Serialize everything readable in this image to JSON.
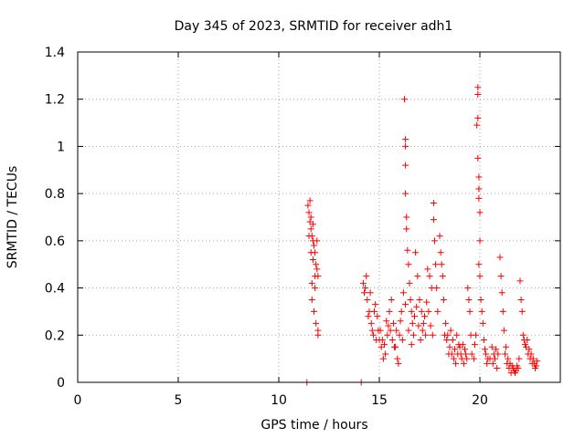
{
  "chart_data": {
    "type": "scatter",
    "title": "Day 345 of 2023, SRMTID for receiver adh1",
    "xlabel": "GPS time / hours",
    "ylabel": "SRMTID / TECUs",
    "xlim": [
      0,
      24
    ],
    "ylim": [
      0,
      1.4
    ],
    "xticks": [
      0,
      5,
      10,
      15,
      20
    ],
    "xtick_labels": [
      "0",
      "5",
      "10",
      "15",
      "20"
    ],
    "yticks": [
      0,
      0.2,
      0.4,
      0.6,
      0.8,
      1.0,
      1.2,
      1.4
    ],
    "ytick_labels": [
      "0",
      "0.2",
      "0.4",
      "0.6",
      "0.8",
      "1",
      "1.2",
      "1.4"
    ],
    "grid": true,
    "marker": "plus",
    "marker_color": "#ff0000",
    "series": [
      {
        "name": "adh1",
        "points": [
          [
            11.4,
            0.0
          ],
          [
            14.1,
            0.0
          ],
          [
            11.45,
            0.75
          ],
          [
            11.5,
            0.72
          ],
          [
            11.55,
            0.68
          ],
          [
            11.6,
            0.65
          ],
          [
            11.65,
            0.62
          ],
          [
            11.7,
            0.6
          ],
          [
            11.75,
            0.58
          ],
          [
            11.8,
            0.55
          ],
          [
            11.85,
            0.5
          ],
          [
            11.9,
            0.48
          ],
          [
            11.95,
            0.45
          ],
          [
            11.5,
            0.62
          ],
          [
            11.6,
            0.55
          ],
          [
            11.7,
            0.52
          ],
          [
            11.8,
            0.4
          ],
          [
            11.65,
            0.35
          ],
          [
            11.75,
            0.3
          ],
          [
            11.85,
            0.25
          ],
          [
            11.95,
            0.22
          ],
          [
            11.55,
            0.77
          ],
          [
            11.6,
            0.7
          ],
          [
            11.7,
            0.67
          ],
          [
            11.9,
            0.6
          ],
          [
            11.8,
            0.45
          ],
          [
            11.95,
            0.2
          ],
          [
            11.65,
            0.42
          ],
          [
            14.2,
            0.42
          ],
          [
            14.3,
            0.4
          ],
          [
            14.4,
            0.35
          ],
          [
            14.5,
            0.3
          ],
          [
            14.6,
            0.25
          ],
          [
            14.7,
            0.2
          ],
          [
            14.8,
            0.33
          ],
          [
            14.9,
            0.28
          ],
          [
            15.0,
            0.18
          ],
          [
            15.1,
            0.15
          ],
          [
            15.2,
            0.1
          ],
          [
            15.3,
            0.12
          ],
          [
            15.4,
            0.2
          ],
          [
            15.5,
            0.3
          ],
          [
            15.6,
            0.35
          ],
          [
            15.7,
            0.25
          ],
          [
            15.8,
            0.15
          ],
          [
            15.9,
            0.1
          ],
          [
            16.0,
            0.2
          ],
          [
            16.1,
            0.3
          ],
          [
            16.2,
            0.38
          ],
          [
            16.3,
            0.33
          ],
          [
            14.35,
            0.45
          ],
          [
            14.55,
            0.38
          ],
          [
            14.75,
            0.3
          ],
          [
            14.95,
            0.22
          ],
          [
            15.15,
            0.18
          ],
          [
            15.35,
            0.26
          ],
          [
            15.55,
            0.22
          ],
          [
            15.75,
            0.15
          ],
          [
            15.95,
            0.08
          ],
          [
            16.25,
            1.2
          ],
          [
            16.3,
            1.03
          ],
          [
            16.3,
            1.0
          ],
          [
            16.3,
            0.92
          ],
          [
            16.3,
            0.8
          ],
          [
            16.35,
            0.7
          ],
          [
            16.35,
            0.65
          ],
          [
            16.4,
            0.56
          ],
          [
            16.45,
            0.5
          ],
          [
            16.5,
            0.42
          ],
          [
            16.55,
            0.35
          ],
          [
            16.6,
            0.3
          ],
          [
            16.65,
            0.25
          ],
          [
            16.7,
            0.2
          ],
          [
            16.8,
            0.55
          ],
          [
            16.9,
            0.45
          ],
          [
            17.0,
            0.35
          ],
          [
            17.1,
            0.3
          ],
          [
            17.2,
            0.25
          ],
          [
            17.3,
            0.2
          ],
          [
            17.4,
            0.48
          ],
          [
            17.5,
            0.45
          ],
          [
            17.6,
            0.4
          ],
          [
            17.7,
            0.76
          ],
          [
            17.7,
            0.69
          ],
          [
            17.75,
            0.6
          ],
          [
            17.8,
            0.5
          ],
          [
            17.85,
            0.4
          ],
          [
            17.9,
            0.3
          ],
          [
            18.0,
            0.62
          ],
          [
            18.05,
            0.55
          ],
          [
            18.1,
            0.5
          ],
          [
            18.15,
            0.45
          ],
          [
            18.2,
            0.35
          ],
          [
            18.3,
            0.25
          ],
          [
            18.4,
            0.2
          ],
          [
            18.5,
            0.15
          ],
          [
            18.6,
            0.12
          ],
          [
            18.7,
            0.1
          ],
          [
            18.8,
            0.08
          ],
          [
            18.9,
            0.12
          ],
          [
            19.0,
            0.15
          ],
          [
            19.1,
            0.1
          ],
          [
            19.2,
            0.08
          ],
          [
            19.3,
            0.12
          ],
          [
            19.4,
            0.4
          ],
          [
            19.45,
            0.35
          ],
          [
            19.5,
            0.3
          ],
          [
            19.55,
            0.2
          ],
          [
            19.6,
            0.12
          ],
          [
            19.9,
            1.25
          ],
          [
            19.9,
            1.22
          ],
          [
            19.9,
            1.12
          ],
          [
            19.85,
            1.09
          ],
          [
            19.9,
            0.95
          ],
          [
            19.95,
            0.87
          ],
          [
            19.95,
            0.82
          ],
          [
            19.95,
            0.78
          ],
          [
            20.0,
            0.72
          ],
          [
            20.0,
            0.6
          ],
          [
            19.95,
            0.5
          ],
          [
            20.0,
            0.45
          ],
          [
            20.05,
            0.35
          ],
          [
            20.1,
            0.3
          ],
          [
            20.15,
            0.25
          ],
          [
            20.2,
            0.18
          ],
          [
            20.3,
            0.12
          ],
          [
            20.4,
            0.1
          ],
          [
            20.6,
            0.15
          ],
          [
            20.7,
            0.12
          ],
          [
            20.8,
            0.14
          ],
          [
            20.9,
            0.12
          ],
          [
            21.0,
            0.53
          ],
          [
            21.05,
            0.45
          ],
          [
            21.1,
            0.38
          ],
          [
            21.15,
            0.3
          ],
          [
            21.2,
            0.22
          ],
          [
            21.3,
            0.15
          ],
          [
            21.4,
            0.1
          ],
          [
            21.5,
            0.08
          ],
          [
            21.6,
            0.07
          ],
          [
            21.7,
            0.05
          ],
          [
            21.8,
            0.05
          ],
          [
            21.9,
            0.06
          ],
          [
            22.0,
            0.43
          ],
          [
            22.05,
            0.35
          ],
          [
            22.1,
            0.3
          ],
          [
            22.15,
            0.2
          ],
          [
            22.2,
            0.18
          ],
          [
            22.3,
            0.15
          ],
          [
            22.4,
            0.12
          ],
          [
            22.5,
            0.1
          ],
          [
            22.6,
            0.08
          ],
          [
            22.7,
            0.08
          ],
          [
            22.8,
            0.07
          ],
          [
            14.25,
            0.38
          ],
          [
            14.45,
            0.28
          ],
          [
            14.65,
            0.22
          ],
          [
            14.85,
            0.18
          ],
          [
            15.05,
            0.22
          ],
          [
            15.25,
            0.16
          ],
          [
            15.45,
            0.24
          ],
          [
            15.65,
            0.18
          ],
          [
            15.85,
            0.22
          ],
          [
            16.05,
            0.26
          ],
          [
            16.15,
            0.18
          ],
          [
            16.45,
            0.22
          ],
          [
            16.6,
            0.16
          ],
          [
            16.75,
            0.28
          ],
          [
            16.85,
            0.32
          ],
          [
            16.95,
            0.24
          ],
          [
            17.05,
            0.18
          ],
          [
            17.15,
            0.22
          ],
          [
            17.25,
            0.28
          ],
          [
            17.35,
            0.34
          ],
          [
            17.45,
            0.3
          ],
          [
            17.55,
            0.24
          ],
          [
            17.65,
            0.2
          ],
          [
            18.25,
            0.2
          ],
          [
            18.35,
            0.18
          ],
          [
            18.45,
            0.12
          ],
          [
            18.55,
            0.22
          ],
          [
            18.65,
            0.18
          ],
          [
            18.75,
            0.14
          ],
          [
            18.85,
            0.2
          ],
          [
            18.95,
            0.16
          ],
          [
            19.05,
            0.12
          ],
          [
            19.15,
            0.16
          ],
          [
            19.25,
            0.14
          ],
          [
            19.35,
            0.1
          ],
          [
            19.7,
            0.1
          ],
          [
            19.75,
            0.16
          ],
          [
            19.8,
            0.2
          ],
          [
            20.25,
            0.14
          ],
          [
            20.35,
            0.08
          ],
          [
            20.5,
            0.1
          ],
          [
            20.65,
            0.08
          ],
          [
            20.75,
            0.1
          ],
          [
            20.85,
            0.06
          ],
          [
            21.25,
            0.12
          ],
          [
            21.35,
            0.08
          ],
          [
            21.45,
            0.06
          ],
          [
            21.55,
            0.04
          ],
          [
            21.65,
            0.06
          ],
          [
            21.75,
            0.04
          ],
          [
            21.85,
            0.07
          ],
          [
            21.95,
            0.1
          ],
          [
            22.25,
            0.16
          ],
          [
            22.35,
            0.18
          ],
          [
            22.45,
            0.14
          ],
          [
            22.55,
            0.12
          ],
          [
            22.65,
            0.1
          ],
          [
            22.75,
            0.06
          ],
          [
            22.85,
            0.09
          ]
        ]
      }
    ]
  }
}
